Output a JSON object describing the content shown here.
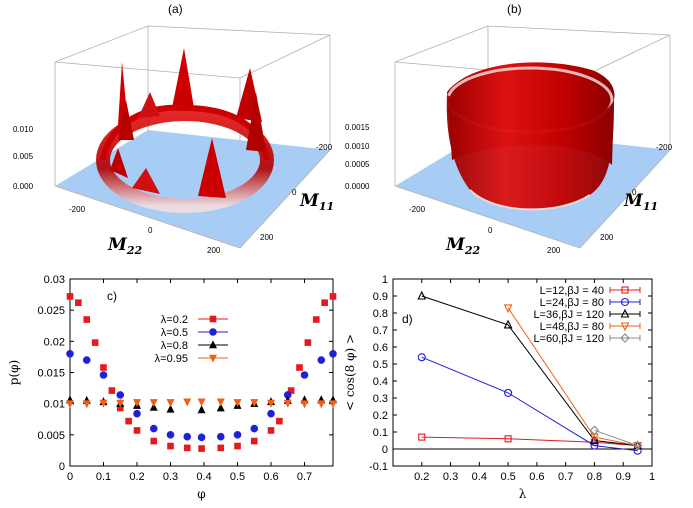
{
  "panels_3d": [
    {
      "label": "(a)",
      "z_ticks": [
        "0.000",
        "0.005",
        "0.010"
      ],
      "m11_ticks": [
        "-200",
        "0",
        "200"
      ],
      "m22_ticks": [
        "-200",
        "0",
        "200"
      ],
      "axis_m11_main": "M",
      "axis_m11_sub": "11",
      "axis_m22_main": "M",
      "axis_m22_sub": "22"
    },
    {
      "label": "(b)",
      "z_ticks": [
        "0.0000",
        "0.0005",
        "0.0010",
        "0.0015"
      ],
      "m11_ticks": [
        "-200",
        "0",
        "200"
      ],
      "m22_ticks": [
        "-200",
        "0",
        "200"
      ],
      "axis_m11_main": "M",
      "axis_m11_sub": "11",
      "axis_m22_main": "M",
      "axis_m22_sub": "22"
    }
  ],
  "colors": {
    "surface_red": "#cc0000",
    "plane_blue": "#a8cdf5",
    "box_gray": "#b0b0b0",
    "red": "#e41a1c",
    "blue": "#2020d8",
    "black": "#000000",
    "orange": "#f06018",
    "gray": "#888888"
  },
  "chart_data": [
    {
      "type": "scatter",
      "panel_label": "c)",
      "xlabel": "φ",
      "ylabel": "p(φ)",
      "xlim": [
        0,
        0.785
      ],
      "ylim": [
        0,
        0.03
      ],
      "xticks": [
        "0",
        "0.1",
        "0.2",
        "0.3",
        "0.4",
        "0.5",
        "0.6",
        "0.7"
      ],
      "yticks": [
        "0",
        "0.005",
        "0.01",
        "0.015",
        "0.02",
        "0.025",
        "0.03"
      ],
      "legend_position": "center-right",
      "series": [
        {
          "name": "λ=0.2",
          "color": "#e41a1c",
          "marker": "square",
          "x": [
            0,
            0.025,
            0.05,
            0.075,
            0.1,
            0.125,
            0.15,
            0.175,
            0.2,
            0.25,
            0.3,
            0.35,
            0.3927,
            0.45,
            0.5,
            0.55,
            0.6,
            0.625,
            0.66,
            0.685,
            0.71,
            0.735,
            0.76,
            0.785
          ],
          "y": [
            0.0272,
            0.0262,
            0.0235,
            0.0198,
            0.0158,
            0.0121,
            0.0093,
            0.0072,
            0.0057,
            0.004,
            0.0032,
            0.0029,
            0.0028,
            0.0029,
            0.0032,
            0.004,
            0.0057,
            0.0072,
            0.0121,
            0.0158,
            0.0198,
            0.0235,
            0.0262,
            0.0272
          ]
        },
        {
          "name": "λ=0.5",
          "color": "#2020d8",
          "marker": "circle",
          "x": [
            0,
            0.05,
            0.1,
            0.15,
            0.2,
            0.25,
            0.3,
            0.35,
            0.3927,
            0.45,
            0.5,
            0.55,
            0.6,
            0.65,
            0.7,
            0.75,
            0.785
          ],
          "y": [
            0.018,
            0.017,
            0.0146,
            0.0114,
            0.0084,
            0.006,
            0.005,
            0.0047,
            0.0046,
            0.0047,
            0.005,
            0.006,
            0.0084,
            0.0114,
            0.0146,
            0.017,
            0.018
          ]
        },
        {
          "name": "λ=0.8",
          "color": "#000000",
          "marker": "triangle",
          "x": [
            0,
            0.05,
            0.1,
            0.15,
            0.2,
            0.25,
            0.3,
            0.3927,
            0.45,
            0.5,
            0.55,
            0.6,
            0.65,
            0.7,
            0.75,
            0.785
          ],
          "y": [
            0.0106,
            0.0105,
            0.0103,
            0.01,
            0.0097,
            0.0094,
            0.0091,
            0.009,
            0.0093,
            0.0097,
            0.01,
            0.0103,
            0.0105,
            0.0106,
            0.0106,
            0.0106
          ]
        },
        {
          "name": "λ=0.95",
          "color": "#f06018",
          "marker": "triangle-down",
          "x": [
            0,
            0.05,
            0.1,
            0.15,
            0.2,
            0.25,
            0.3,
            0.35,
            0.3927,
            0.45,
            0.5,
            0.55,
            0.6,
            0.65,
            0.7,
            0.75,
            0.785
          ],
          "y": [
            0.01,
            0.01,
            0.0101,
            0.0101,
            0.0102,
            0.0102,
            0.0102,
            0.0103,
            0.0103,
            0.0103,
            0.0102,
            0.0102,
            0.0101,
            0.0101,
            0.01,
            0.01,
            0.01
          ]
        }
      ]
    },
    {
      "type": "line",
      "panel_label": "d)",
      "xlabel": "λ",
      "ylabel": "< cos(8 φ) >",
      "xlim": [
        0.1,
        1.0
      ],
      "ylim": [
        -0.1,
        1.0
      ],
      "xticks": [
        "0.2",
        "0.3",
        "0.4",
        "0.5",
        "0.6",
        "0.7",
        "0.8",
        "0.9",
        "1"
      ],
      "yticks": [
        "-0.1",
        "0",
        "0.1",
        "0.2",
        "0.3",
        "0.4",
        "0.5",
        "0.6",
        "0.7",
        "0.8",
        "0.9",
        "1"
      ],
      "legend_position": "top-right",
      "series": [
        {
          "name": "L=12,βJ = 40",
          "color": "#e41a1c",
          "marker": "square-open",
          "x": [
            0.2,
            0.5,
            0.8,
            0.95
          ],
          "y": [
            0.07,
            0.06,
            0.04,
            0.02
          ]
        },
        {
          "name": "L=24,βJ = 80",
          "color": "#2020d8",
          "marker": "circle-open",
          "x": [
            0.2,
            0.5,
            0.8,
            0.95
          ],
          "y": [
            0.54,
            0.33,
            0.02,
            -0.01
          ]
        },
        {
          "name": "L=36,βJ = 120",
          "color": "#000000",
          "marker": "triangle-open",
          "x": [
            0.2,
            0.5,
            0.8,
            0.95
          ],
          "y": [
            0.9,
            0.73,
            0.05,
            0.02
          ]
        },
        {
          "name": "L=48,βJ = 80",
          "color": "#f06018",
          "marker": "triangle-down-open",
          "x": [
            0.5,
            0.8,
            0.95
          ],
          "y": [
            0.83,
            0.07,
            0.02
          ]
        },
        {
          "name": "L=60,βJ = 120",
          "color": "#888888",
          "marker": "diamond-open",
          "x": [
            0.8,
            0.95
          ],
          "y": [
            0.11,
            0.02
          ]
        }
      ]
    }
  ]
}
